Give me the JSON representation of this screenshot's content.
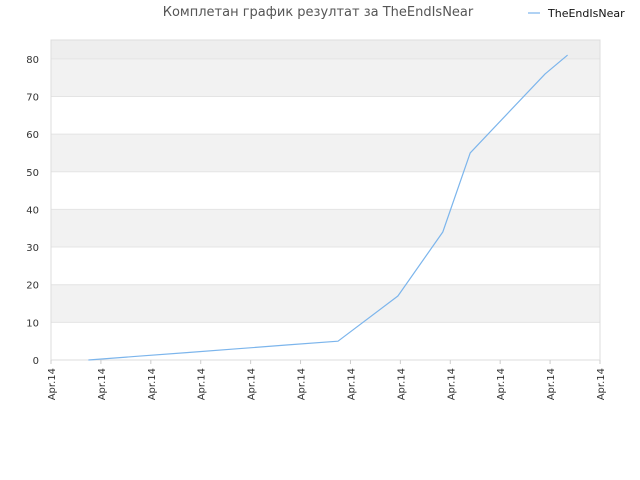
{
  "chart_data": {
    "type": "line",
    "title": "Комплетан график резултат за TheEndIsNear",
    "legend": {
      "position": "top-right",
      "entries": [
        "TheEndIsNear"
      ]
    },
    "grid": true,
    "ylim": [
      0,
      85
    ],
    "y_ticks": [
      "0",
      "10",
      "20",
      "30",
      "40",
      "50",
      "60",
      "70",
      "80"
    ],
    "x_ticks": [
      "Apr.14",
      "Apr.14",
      "Apr.14",
      "Apr.14",
      "Apr.14",
      "Apr.14",
      "Apr.14",
      "Apr.14",
      "Apr.14",
      "Apr.14",
      "Apr.14",
      "Apr.14"
    ],
    "series": [
      {
        "name": "TheEndIsNear",
        "color": "#7cb5ec",
        "x": [
          0.75,
          1.75,
          2.75,
          3.75,
          4.75,
          5.75,
          6.95,
          7.85,
          8.4,
          9.9,
          10.35
        ],
        "y": [
          0,
          1,
          2,
          3,
          4,
          5,
          17,
          34,
          55,
          76,
          81
        ]
      }
    ],
    "xlim": [
      0,
      11
    ]
  }
}
